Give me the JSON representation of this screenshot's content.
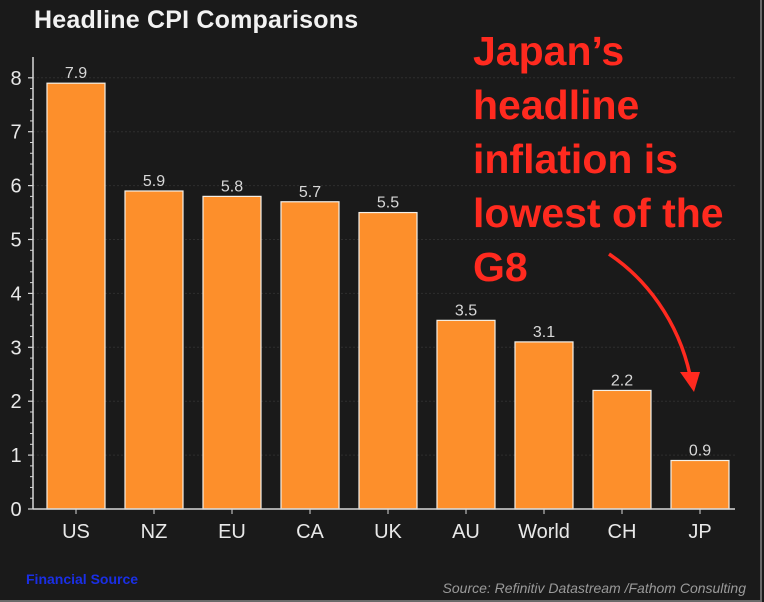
{
  "chart_data": {
    "type": "bar",
    "title": "Headline CPI Comparisons",
    "categories": [
      "US",
      "NZ",
      "EU",
      "CA",
      "UK",
      "AU",
      "World",
      "CH",
      "JP"
    ],
    "values": [
      7.9,
      5.9,
      5.8,
      5.7,
      5.5,
      3.5,
      3.1,
      2.2,
      0.9
    ],
    "data_labels": [
      "7.9",
      "5.9",
      "5.8",
      "5.7",
      "5.5",
      "3.5",
      "3.1",
      "2.2",
      "0.9"
    ],
    "xlabel": "",
    "ylabel": "",
    "ylim": [
      0,
      8.5
    ],
    "yticks": [
      0,
      1,
      2,
      3,
      4,
      5,
      6,
      7,
      8
    ],
    "minor_ticks_per_major": 5,
    "grid": true,
    "bar_color": "#fd8f2b",
    "bar_edge_color": "#f4f0e8",
    "annotation": {
      "lines": [
        "Japan’s",
        "headline",
        "inflation is",
        "lowest of the",
        "G8"
      ],
      "color": "#ff2a1f",
      "arrow_points_to": "JP"
    }
  },
  "footer": {
    "brand": "Financial Source",
    "source": "Source: Refinitiv Datastream /Fathom Consulting"
  },
  "colors": {
    "background": "#1a1a1a",
    "axis": "#d8d8d8",
    "text": "#e8e8e8",
    "brand": "#1a2fe6"
  }
}
